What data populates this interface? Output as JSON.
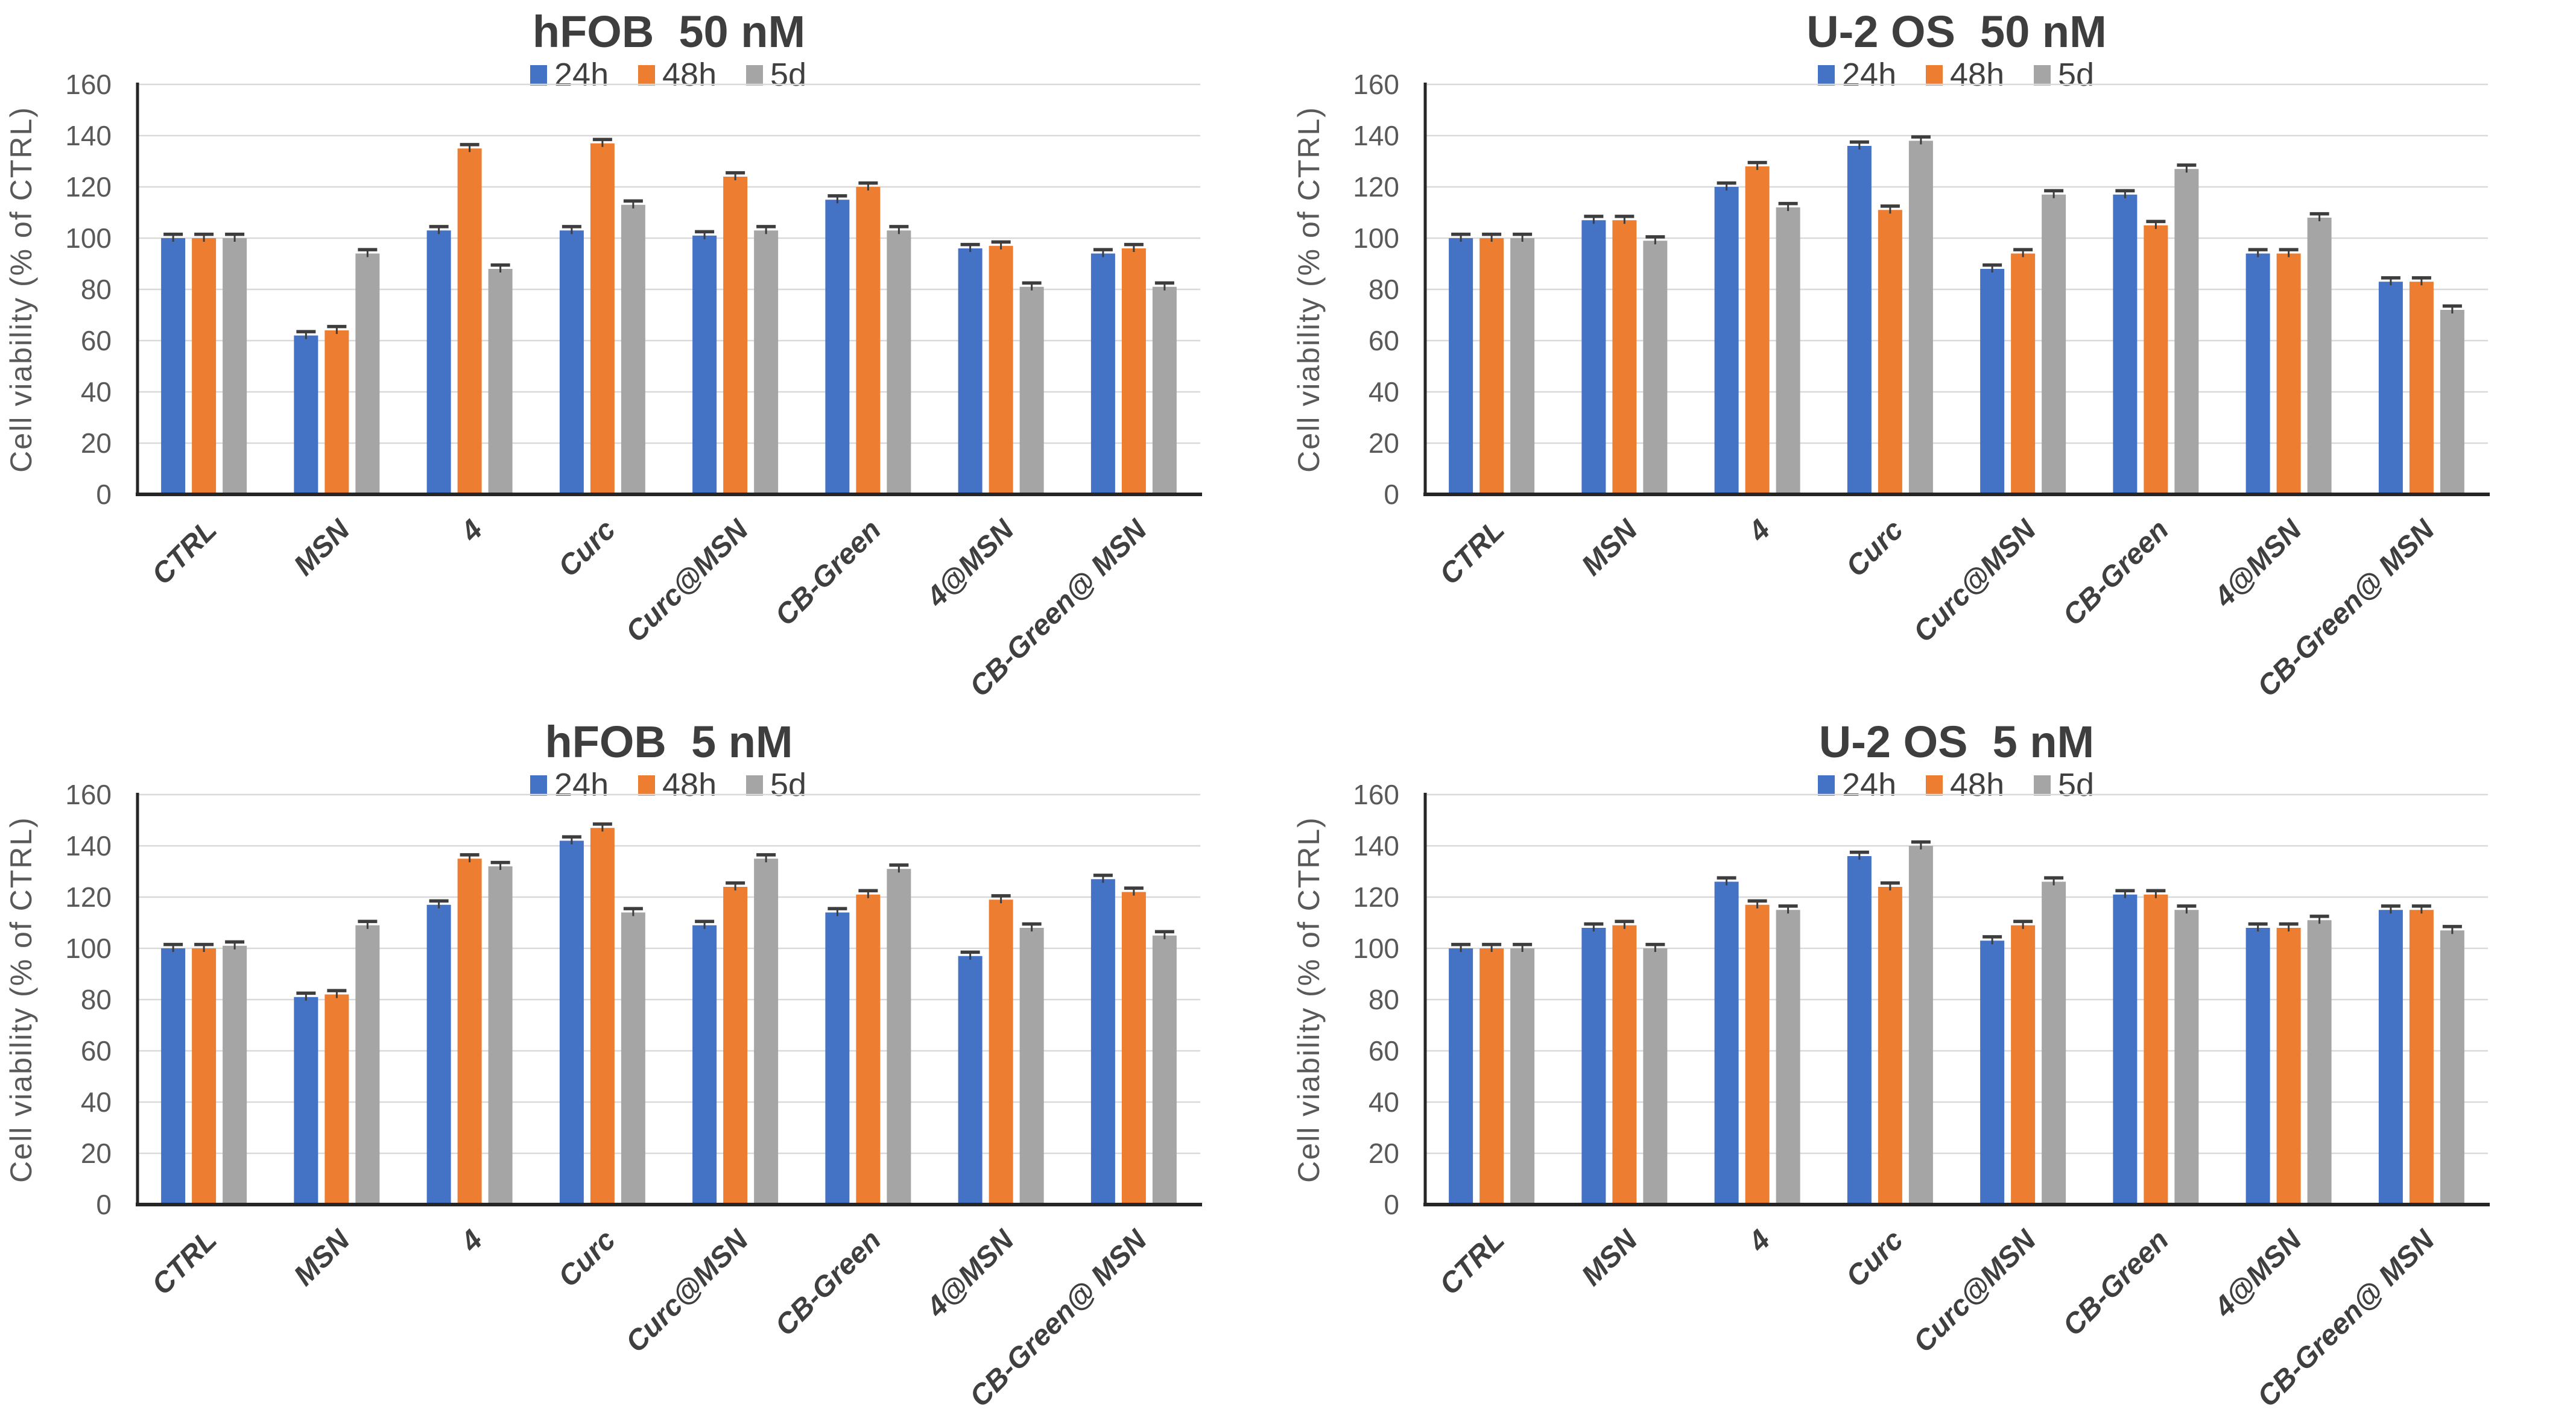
{
  "figure": {
    "background": "#FFFFFF",
    "ylabel": "Cell viability (% of CTRL)",
    "legend_labels": [
      "24h",
      "48h",
      "5d"
    ],
    "colors": {
      "series_24h": "#4472C4",
      "series_48h": "#ED7D31",
      "series_5d": "#A5A5A5",
      "gridline": "#D9D9D9",
      "axis": "#262626",
      "title_text": "#3E3E3E",
      "tick_text": "#595959",
      "category_text": "#3F3F3F",
      "legend_text": "#404040",
      "error_bar": "#3D3D3D"
    }
  },
  "chart_data": [
    {
      "id": "hfob-50nm",
      "type": "bar",
      "title": "hFOB  50 nM",
      "ylabel": "Cell viability (% of CTRL)",
      "ylim": [
        0,
        160
      ],
      "yticks": [
        0,
        20,
        40,
        60,
        80,
        100,
        120,
        140,
        160
      ],
      "grid": "horizontal",
      "legend_position": "top",
      "error_bar_size": 1.5,
      "categories": [
        "CTRL",
        "MSN",
        "4",
        "Curc",
        "Curc@MSN",
        "CB-Green",
        "4@MSN",
        "CB-Green@ MSN"
      ],
      "series": [
        {
          "name": "24h",
          "color": "#4472C4",
          "values": [
            100,
            62,
            103,
            103,
            101,
            115,
            96,
            94
          ]
        },
        {
          "name": "48h",
          "color": "#ED7D31",
          "values": [
            100,
            64,
            135,
            137,
            124,
            120,
            97,
            96
          ]
        },
        {
          "name": "5d",
          "color": "#A5A5A5",
          "values": [
            100,
            94,
            88,
            113,
            103,
            103,
            81,
            81
          ]
        }
      ]
    },
    {
      "id": "u2os-50nm",
      "type": "bar",
      "title": "U-2 OS  50 nM",
      "ylabel": "Cell viability (% of CTRL)",
      "ylim": [
        0,
        160
      ],
      "yticks": [
        0,
        20,
        40,
        60,
        80,
        100,
        120,
        140,
        160
      ],
      "grid": "horizontal",
      "legend_position": "top",
      "error_bar_size": 1.5,
      "categories": [
        "CTRL",
        "MSN",
        "4",
        "Curc",
        "Curc@MSN",
        "CB-Green",
        "4@MSN",
        "CB-Green@ MSN"
      ],
      "series": [
        {
          "name": "24h",
          "color": "#4472C4",
          "values": [
            100,
            107,
            120,
            136,
            88,
            117,
            94,
            83
          ]
        },
        {
          "name": "48h",
          "color": "#ED7D31",
          "values": [
            100,
            107,
            128,
            111,
            94,
            105,
            94,
            83
          ]
        },
        {
          "name": "5d",
          "color": "#A5A5A5",
          "values": [
            100,
            99,
            112,
            138,
            117,
            127,
            108,
            72
          ]
        }
      ]
    },
    {
      "id": "hfob-5nm",
      "type": "bar",
      "title": "hFOB  5 nM",
      "ylabel": "Cell viability (% of CTRL)",
      "ylim": [
        0,
        160
      ],
      "yticks": [
        0,
        20,
        40,
        60,
        80,
        100,
        120,
        140,
        160
      ],
      "grid": "horizontal",
      "legend_position": "top",
      "error_bar_size": 1.5,
      "categories": [
        "CTRL",
        "MSN",
        "4",
        "Curc",
        "Curc@MSN",
        "CB-Green",
        "4@MSN",
        "CB-Green@ MSN"
      ],
      "series": [
        {
          "name": "24h",
          "color": "#4472C4",
          "values": [
            100,
            81,
            117,
            142,
            109,
            114,
            97,
            127
          ]
        },
        {
          "name": "48h",
          "color": "#ED7D31",
          "values": [
            100,
            82,
            135,
            147,
            124,
            121,
            119,
            122
          ]
        },
        {
          "name": "5d",
          "color": "#A5A5A5",
          "values": [
            101,
            109,
            132,
            114,
            135,
            131,
            108,
            105
          ]
        }
      ]
    },
    {
      "id": "u2os-5nm",
      "type": "bar",
      "title": "U-2 OS  5 nM",
      "ylabel": "Cell viability (% of CTRL)",
      "ylim": [
        0,
        160
      ],
      "yticks": [
        0,
        20,
        40,
        60,
        80,
        100,
        120,
        140,
        160
      ],
      "grid": "horizontal",
      "legend_position": "top",
      "error_bar_size": 1.5,
      "categories": [
        "CTRL",
        "MSN",
        "4",
        "Curc",
        "Curc@MSN",
        "CB-Green",
        "4@MSN",
        "CB-Green@ MSN"
      ],
      "series": [
        {
          "name": "24h",
          "color": "#4472C4",
          "values": [
            100,
            108,
            126,
            136,
            103,
            121,
            108,
            115
          ]
        },
        {
          "name": "48h",
          "color": "#ED7D31",
          "values": [
            100,
            109,
            117,
            124,
            109,
            121,
            108,
            115
          ]
        },
        {
          "name": "5d",
          "color": "#A5A5A5",
          "values": [
            100,
            100,
            115,
            140,
            126,
            115,
            111,
            107
          ]
        }
      ]
    }
  ]
}
